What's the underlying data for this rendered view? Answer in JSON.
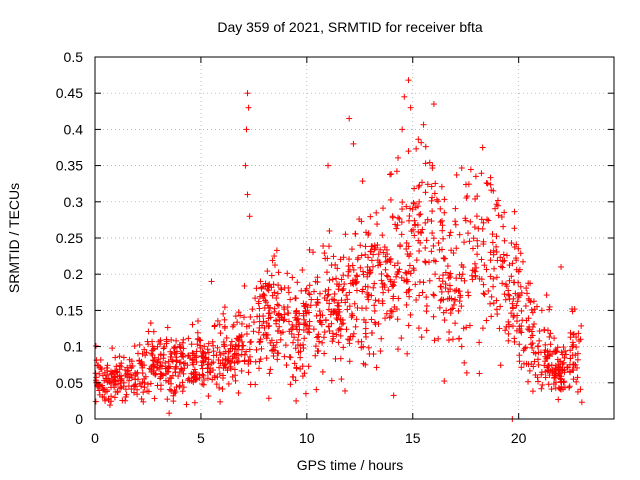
{
  "chart_data": {
    "type": "scatter",
    "title": "Day 359 of 2021, SRMTID for receiver bfta",
    "xlabel": "GPS time / hours",
    "ylabel": "SRMTID / TECUs",
    "xlim": [
      0,
      24.5
    ],
    "ylim": [
      0,
      0.5
    ],
    "grid": true,
    "marker": "+",
    "color": "#ff0000",
    "x_ticks": [
      0,
      5,
      10,
      15,
      20
    ],
    "y_ticks": [
      0,
      0.05,
      0.1,
      0.15,
      0.2,
      0.25,
      0.3,
      0.35,
      0.4,
      0.45,
      0.5
    ],
    "x_tick_labels": [
      "0",
      "5",
      "10",
      "15",
      "20"
    ],
    "y_tick_labels": [
      "0",
      "0.05",
      "0.1",
      "0.15",
      "0.2",
      "0.25",
      "0.3",
      "0.35",
      "0.4",
      "0.45",
      "0.5"
    ],
    "series": [
      {
        "name": "SRMTID",
        "trend": [
          [
            0.0,
            0.055
          ],
          [
            0.5,
            0.05
          ],
          [
            1.0,
            0.05
          ],
          [
            1.5,
            0.055
          ],
          [
            2.0,
            0.06
          ],
          [
            2.5,
            0.07
          ],
          [
            3.0,
            0.075
          ],
          [
            3.5,
            0.07
          ],
          [
            4.0,
            0.075
          ],
          [
            4.5,
            0.075
          ],
          [
            5.0,
            0.08
          ],
          [
            5.5,
            0.09
          ],
          [
            6.0,
            0.09
          ],
          [
            6.5,
            0.085
          ],
          [
            7.0,
            0.1
          ],
          [
            7.5,
            0.11
          ],
          [
            8.0,
            0.14
          ],
          [
            8.5,
            0.16
          ],
          [
            9.0,
            0.13
          ],
          [
            9.5,
            0.12
          ],
          [
            10.0,
            0.14
          ],
          [
            10.5,
            0.14
          ],
          [
            11.0,
            0.15
          ],
          [
            11.5,
            0.155
          ],
          [
            12.0,
            0.16
          ],
          [
            12.5,
            0.18
          ],
          [
            13.0,
            0.17
          ],
          [
            13.5,
            0.2
          ],
          [
            14.0,
            0.22
          ],
          [
            14.5,
            0.23
          ],
          [
            15.0,
            0.24
          ],
          [
            15.5,
            0.25
          ],
          [
            16.0,
            0.22
          ],
          [
            16.5,
            0.2
          ],
          [
            17.0,
            0.18
          ],
          [
            17.5,
            0.19
          ],
          [
            18.0,
            0.23
          ],
          [
            18.5,
            0.22
          ],
          [
            19.0,
            0.21
          ],
          [
            19.5,
            0.18
          ],
          [
            20.0,
            0.16
          ],
          [
            20.5,
            0.12
          ],
          [
            21.0,
            0.1
          ],
          [
            21.5,
            0.07
          ],
          [
            22.0,
            0.07
          ],
          [
            22.5,
            0.09
          ],
          [
            23.0,
            0.08
          ]
        ],
        "spikes": [
          {
            "x": 7.2,
            "y": 0.45
          },
          {
            "x": 7.25,
            "y": 0.43
          },
          {
            "x": 7.15,
            "y": 0.4
          },
          {
            "x": 7.1,
            "y": 0.35
          },
          {
            "x": 7.2,
            "y": 0.31
          },
          {
            "x": 7.3,
            "y": 0.28
          },
          {
            "x": 14.8,
            "y": 0.468
          },
          {
            "x": 14.6,
            "y": 0.445
          },
          {
            "x": 14.9,
            "y": 0.43
          },
          {
            "x": 14.5,
            "y": 0.4
          },
          {
            "x": 14.8,
            "y": 0.37
          },
          {
            "x": 16.0,
            "y": 0.435
          },
          {
            "x": 12.0,
            "y": 0.415
          },
          {
            "x": 12.2,
            "y": 0.38
          },
          {
            "x": 11.0,
            "y": 0.35
          },
          {
            "x": 18.3,
            "y": 0.375
          },
          {
            "x": 19.7,
            "y": 0.0
          },
          {
            "x": 22.0,
            "y": 0.21
          },
          {
            "x": 5.5,
            "y": 0.19
          },
          {
            "x": 3.5,
            "y": 0.008
          }
        ],
        "range": [
          0.0,
          23.0
        ],
        "count": 1600
      }
    ]
  }
}
